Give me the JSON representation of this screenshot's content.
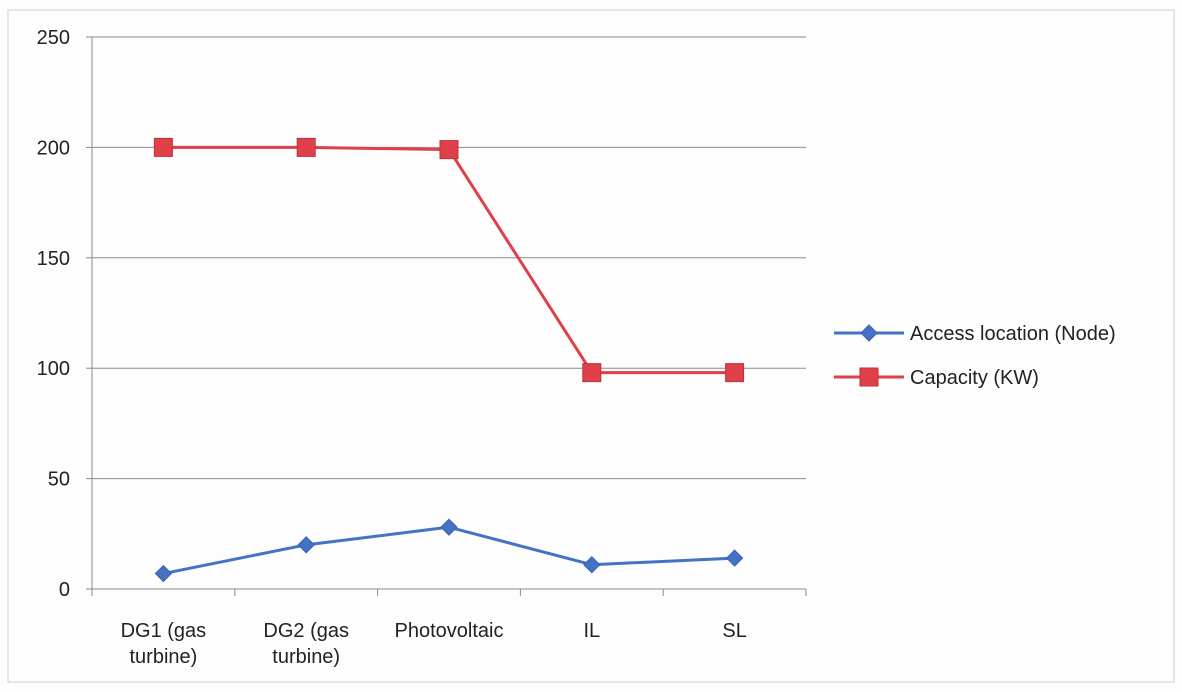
{
  "chart_data": {
    "type": "line",
    "categories": [
      "DG1 (gas turbine)",
      "DG2 (gas turbine)",
      "Photovoltaic",
      "IL",
      "SL"
    ],
    "category_lines": [
      [
        "DG1 (gas",
        "turbine)"
      ],
      [
        "DG2 (gas",
        "turbine)"
      ],
      [
        "Photovoltaic"
      ],
      [
        "IL"
      ],
      [
        "SL"
      ]
    ],
    "series": [
      {
        "name": "Access location (Node)",
        "values": [
          7,
          20,
          28,
          11,
          14
        ],
        "color": "#4472C4",
        "marker": "diamond"
      },
      {
        "name": "Capacity (KW)",
        "values": [
          200,
          200,
          199,
          98,
          98
        ],
        "color": "#E0404A",
        "marker": "square"
      }
    ],
    "ylim": [
      0,
      250
    ],
    "yticks": [
      "0",
      "50",
      "100",
      "150",
      "200",
      "250"
    ],
    "title": "",
    "xlabel": "",
    "ylabel": "",
    "grid": true,
    "legend_position": "right"
  }
}
